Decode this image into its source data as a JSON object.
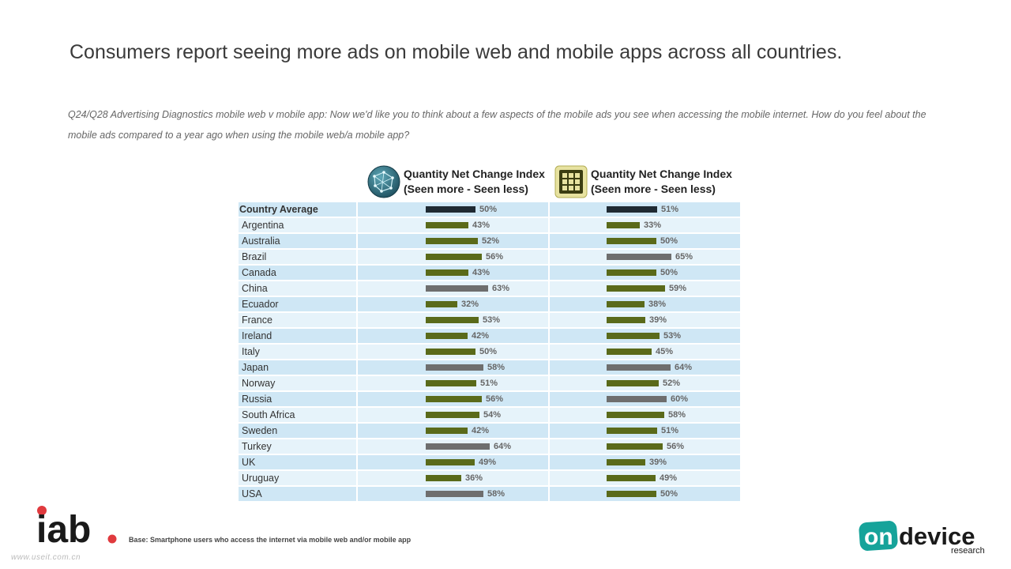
{
  "title": "Consumers report seeing more ads on mobile web and mobile apps across all countries.",
  "question": "Q24/Q28 Advertising Diagnostics mobile web v mobile app: Now we'd like you to think about a few aspects of the mobile ads you see when accessing the mobile internet. How do you feel about the mobile ads compared to a year ago when using the mobile web/a mobile app?",
  "columns": [
    {
      "icon": "globe-icon",
      "line1": "Quantity Net Change Index",
      "line2": "(Seen more - Seen less)"
    },
    {
      "icon": "app-grid-icon",
      "line1": "Quantity Net Change Index",
      "line2": "(Seen more - Seen less)"
    }
  ],
  "footer": {
    "base": "Base: Smartphone users who access the internet via mobile web and/or mobile app",
    "watermark": "www.useit.com.cn"
  },
  "logos": {
    "iab": "iab.",
    "ondevice_1": "on",
    "ondevice_2": "device",
    "ondevice_3": "research"
  },
  "colors": {
    "average": "#1f2a33",
    "normal": "#5a6a1a",
    "highlight": "#6e6e6e",
    "row_dark": "#cfe7f5",
    "row_light": "#e6f3fa"
  },
  "chart_data": {
    "type": "bar",
    "orientation": "horizontal",
    "categories": [
      "Country Average",
      "Argentina",
      "Australia",
      "Brazil",
      "Canada",
      "China",
      "Ecuador",
      "France",
      "Ireland",
      "Italy",
      "Japan",
      "Norway",
      "Russia",
      "South Africa",
      "Sweden",
      "Turkey",
      "UK",
      "Uruguay",
      "USA"
    ],
    "unit": "%",
    "series": [
      {
        "values": [
          50,
          43,
          52,
          56,
          43,
          63,
          32,
          53,
          42,
          50,
          58,
          51,
          56,
          54,
          42,
          64,
          49,
          36,
          58
        ],
        "highlighted": [
          "China",
          "Japan",
          "Turkey",
          "USA"
        ]
      },
      {
        "values": [
          51,
          33,
          50,
          65,
          50,
          59,
          38,
          39,
          53,
          45,
          64,
          52,
          60,
          58,
          51,
          56,
          39,
          49,
          50
        ],
        "highlighted": [
          "Brazil",
          "Japan",
          "Russia"
        ]
      }
    ]
  }
}
